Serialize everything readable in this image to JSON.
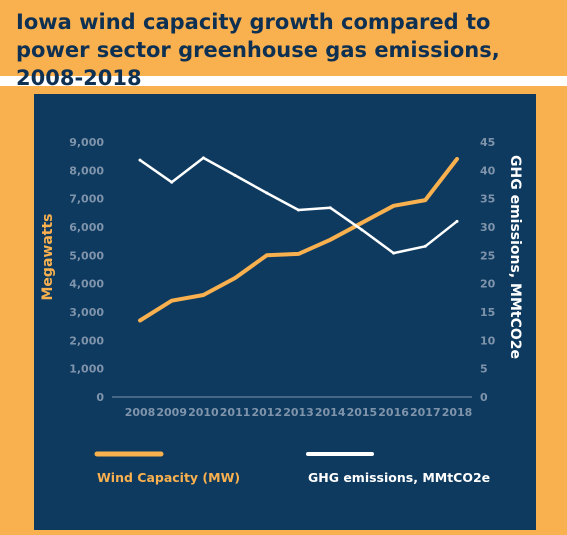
{
  "header": {
    "title": "Iowa wind capacity growth compared to power sector greenhouse gas emissions, 2008-2018"
  },
  "colors": {
    "accent": "#f9b04e",
    "panel": "#0e3a5f",
    "title_text": "#0e3153",
    "ghg_line": "#ffffff",
    "tick_text": "#7f94ab"
  },
  "chart_data": {
    "type": "line",
    "title": "Iowa wind capacity growth compared to power sector greenhouse gas emissions, 2008-2018",
    "x": [
      "2008",
      "2009",
      "2010",
      "2011",
      "2012",
      "2013",
      "2014",
      "2015",
      "2016",
      "2017",
      "2018"
    ],
    "ylabel": "Megawatts",
    "y2label": "GHG emissions, MMtCO2e",
    "ylim": [
      0,
      9000
    ],
    "y2lim": [
      0,
      45
    ],
    "yticks": [
      "0",
      "1,000",
      "2,000",
      "3,000",
      "4,000",
      "5,000",
      "6,000",
      "7,000",
      "8,000",
      "9,000"
    ],
    "y2ticks": [
      "0",
      "5",
      "10",
      "15",
      "20",
      "25",
      "30",
      "35",
      "40",
      "45"
    ],
    "series": [
      {
        "name": "Wind Capacity (MW)",
        "axis": "left",
        "color": "#f9b04e",
        "values": [
          2700,
          3400,
          3600,
          4200,
          5000,
          5050,
          5550,
          6150,
          6750,
          6950,
          8400
        ]
      },
      {
        "name": "GHG emissions, MMtCO2e",
        "axis": "right",
        "color": "#ffffff",
        "values": [
          41.8,
          37.9,
          42.2,
          39.1,
          36.0,
          33.0,
          33.4,
          29.5,
          25.4,
          26.6,
          31.0
        ]
      }
    ],
    "grid": false,
    "legend": "bottom"
  }
}
